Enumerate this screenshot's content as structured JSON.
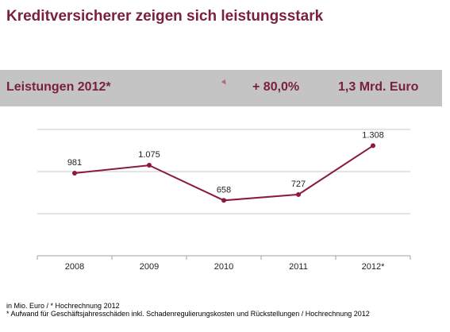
{
  "title": "Kreditversicherer zeigen sich leistungsstark",
  "banner": {
    "label": "Leistungen 2012*",
    "change": "+ 80,0%",
    "amount": "1,3 Mrd. Euro"
  },
  "chart_data": {
    "type": "line",
    "categories": [
      "2008",
      "2009",
      "2010",
      "2011",
      "2012*"
    ],
    "series": [
      {
        "values": [
          981,
          1075,
          658,
          727,
          1308
        ],
        "labels": [
          "981",
          "1.075",
          "658",
          "727",
          "1.308"
        ]
      }
    ],
    "ylim": [
      0,
      1500
    ],
    "grid": true,
    "line_color": "#8b1a3f"
  },
  "footnotes": {
    "line1": "in Mio. Euro / * Hochrechnung 2012",
    "line2": "* Aufwand für Geschäftsjahresschäden inkl. Schadenregulierungskosten und Rückstellungen / Hochrechnung 2012"
  }
}
